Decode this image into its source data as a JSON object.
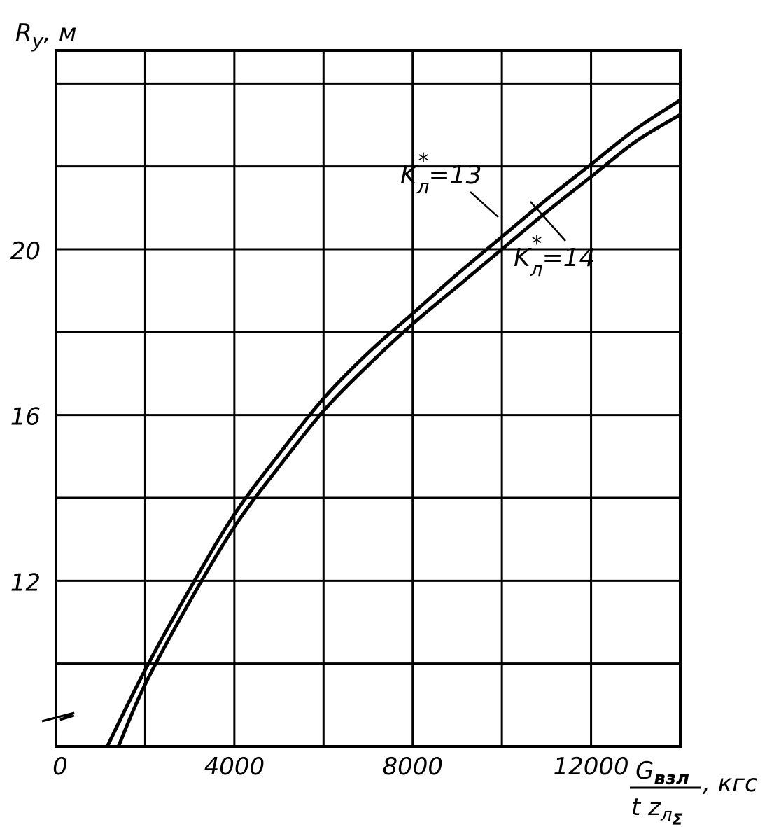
{
  "chart_data": {
    "type": "line",
    "y_axis_label": {
      "main": "R",
      "sub": "y",
      "unit": ", м"
    },
    "x_axis_label": {
      "numerator": "G",
      "numerator_sub": "взл",
      "denominator": "t z",
      "denominator_sub": "л",
      "denominator_subsub": "Σ",
      "unit": ", кгс"
    },
    "x_ticks": [
      {
        "value": 0,
        "label": "0"
      },
      {
        "value": 4000,
        "label": "4000"
      },
      {
        "value": 8000,
        "label": "8000"
      },
      {
        "value": 12000,
        "label": "12000"
      }
    ],
    "y_ticks": [
      {
        "value": 12,
        "label": "12"
      },
      {
        "value": 16,
        "label": "16"
      },
      {
        "value": 20,
        "label": "20"
      }
    ],
    "xlim": [
      0,
      14000
    ],
    "ylim": [
      8,
      24.8
    ],
    "y_axis_broken": true,
    "grid": true,
    "x_grid_step": 2000,
    "y_grid_step": 2,
    "series": [
      {
        "name": "Кл*=13",
        "label_main": "K",
        "label_sub": "л",
        "label_sup": "*",
        "label_value": "=13",
        "x": [
          1150,
          2000,
          3000,
          4000,
          5000,
          6000,
          7000,
          8000,
          9000,
          10000,
          11000,
          12000,
          13000,
          14000
        ],
        "y": [
          8,
          9.85,
          11.8,
          13.6,
          15.05,
          16.4,
          17.5,
          18.45,
          19.4,
          20.3,
          21.2,
          22.05,
          22.9,
          23.6
        ]
      },
      {
        "name": "Кл*=14",
        "label_main": "K",
        "label_sub": "л",
        "label_sup": "*",
        "label_value": "=14",
        "x": [
          1400,
          2000,
          3000,
          4000,
          5000,
          6000,
          7000,
          8000,
          9000,
          10000,
          11000,
          12000,
          13000,
          14000
        ],
        "y": [
          8,
          9.5,
          11.5,
          13.3,
          14.75,
          16.1,
          17.2,
          18.2,
          19.1,
          20.0,
          20.9,
          21.75,
          22.6,
          23.25
        ]
      }
    ]
  }
}
